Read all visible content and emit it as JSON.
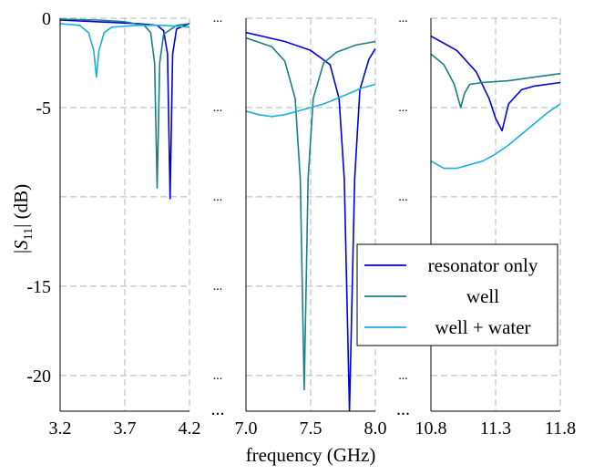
{
  "chart_data": {
    "type": "line",
    "xlabel": "frequency (GHz)",
    "ylabel_prefix": "|",
    "ylabel_symbol": "S",
    "ylabel_subscript": "11",
    "ylabel_suffix": "| (dB)",
    "ylim": [
      -22,
      0
    ],
    "y_ticks": [
      0,
      -5,
      -10,
      -15,
      -20
    ],
    "y_tick_labels": [
      "0",
      "-5",
      "",
      "-15",
      "-20"
    ],
    "grid": true,
    "legend_position": "bottom-right",
    "break_marker": "...",
    "colors": {
      "resonator only": "#0000dd",
      "well": "#1a8080",
      "well + water": "#1aaee0"
    },
    "panels": [
      {
        "id": "p1",
        "xlim": [
          3.2,
          4.2
        ],
        "x_ticks": [
          3.2,
          3.7,
          4.2
        ],
        "x_tick_labels": [
          "3.2",
          "3.7",
          "4.2"
        ]
      },
      {
        "id": "p2",
        "xlim": [
          7.0,
          8.0
        ],
        "x_ticks": [
          7.0,
          7.5,
          8.0
        ],
        "x_tick_labels": [
          "7.0",
          "7.5",
          "8.0"
        ]
      },
      {
        "id": "p3",
        "xlim": [
          10.8,
          11.8
        ],
        "x_ticks": [
          10.8,
          11.3,
          11.8
        ],
        "x_tick_labels": [
          "10.8",
          "11.3",
          "11.8"
        ]
      }
    ],
    "series": [
      {
        "name": "resonator only",
        "panels": {
          "p1": {
            "x": [
              3.2,
              3.5,
              3.8,
              3.95,
              4.0,
              4.03,
              4.05,
              4.07,
              4.1,
              4.2
            ],
            "y": [
              -0.1,
              -0.2,
              -0.3,
              -0.4,
              -0.7,
              -2.0,
              -10.1,
              -2.0,
              -0.6,
              -0.3
            ]
          },
          "p2": {
            "x": [
              7.0,
              7.3,
              7.5,
              7.65,
              7.72,
              7.76,
              7.8,
              7.84,
              7.88,
              7.95,
              8.0
            ],
            "y": [
              -0.8,
              -1.3,
              -1.8,
              -2.6,
              -4.5,
              -9.0,
              -22.0,
              -9.0,
              -4.0,
              -2.3,
              -1.7
            ]
          },
          "p3": {
            "x": [
              10.8,
              11.0,
              11.15,
              11.25,
              11.3,
              11.35,
              11.4,
              11.5,
              11.6,
              11.8
            ],
            "y": [
              -1.0,
              -1.8,
              -3.0,
              -4.5,
              -5.6,
              -6.3,
              -4.8,
              -4.0,
              -3.8,
              -3.6
            ]
          }
        }
      },
      {
        "name": "well",
        "panels": {
          "p1": {
            "x": [
              3.2,
              3.5,
              3.7,
              3.85,
              3.9,
              3.93,
              3.95,
              3.97,
              4.0,
              4.1,
              4.2
            ],
            "y": [
              -0.05,
              -0.1,
              -0.2,
              -0.4,
              -0.8,
              -2.5,
              -9.5,
              -2.5,
              -0.9,
              -0.4,
              -0.3
            ]
          },
          "p2": {
            "x": [
              7.0,
              7.2,
              7.3,
              7.38,
              7.42,
              7.45,
              7.48,
              7.52,
              7.6,
              7.7,
              7.85,
              8.0
            ],
            "y": [
              -1.1,
              -1.6,
              -2.4,
              -4.5,
              -9.0,
              -20.8,
              -9.0,
              -4.5,
              -2.5,
              -1.9,
              -1.5,
              -1.3
            ]
          },
          "p3": {
            "x": [
              10.8,
              10.9,
              10.98,
              11.03,
              11.06,
              11.1,
              11.2,
              11.4,
              11.6,
              11.8
            ],
            "y": [
              -2.0,
              -2.6,
              -3.7,
              -5.0,
              -4.2,
              -3.7,
              -3.6,
              -3.5,
              -3.3,
              -3.1
            ]
          }
        }
      },
      {
        "name": "well + water",
        "panels": {
          "p1": {
            "x": [
              3.2,
              3.35,
              3.42,
              3.46,
              3.48,
              3.5,
              3.54,
              3.6,
              3.8,
              4.0,
              4.2
            ],
            "y": [
              -0.3,
              -0.4,
              -0.8,
              -1.8,
              -3.3,
              -1.8,
              -0.8,
              -0.5,
              -0.4,
              -0.4,
              -0.5
            ]
          },
          "p2": {
            "x": [
              7.0,
              7.1,
              7.2,
              7.3,
              7.4,
              7.5,
              7.6,
              7.7,
              7.8,
              7.9,
              8.0
            ],
            "y": [
              -5.2,
              -5.4,
              -5.5,
              -5.4,
              -5.2,
              -5.0,
              -4.8,
              -4.5,
              -4.2,
              -3.9,
              -3.7
            ]
          },
          "p3": {
            "x": [
              10.8,
              10.9,
              11.0,
              11.1,
              11.2,
              11.3,
              11.4,
              11.5,
              11.6,
              11.7,
              11.8
            ],
            "y": [
              -8.0,
              -8.4,
              -8.4,
              -8.2,
              -8.0,
              -7.6,
              -7.1,
              -6.5,
              -5.9,
              -5.3,
              -4.8
            ]
          }
        }
      }
    ]
  }
}
